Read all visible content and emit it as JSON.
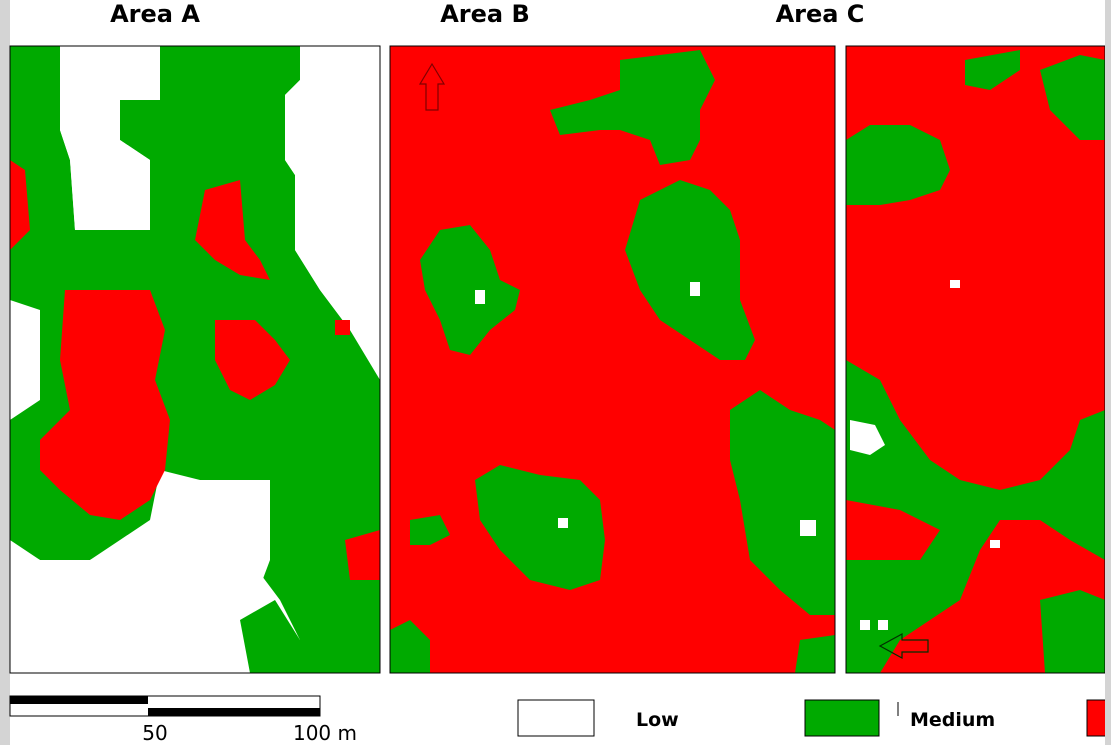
{
  "panels": [
    {
      "title": "Area A"
    },
    {
      "title": "Area B"
    },
    {
      "title": "Area C"
    }
  ],
  "scale_bar": {
    "labels": [
      "50",
      "100 m"
    ]
  },
  "legend": [
    {
      "label": "Low"
    },
    {
      "label": "Medium"
    }
  ]
}
